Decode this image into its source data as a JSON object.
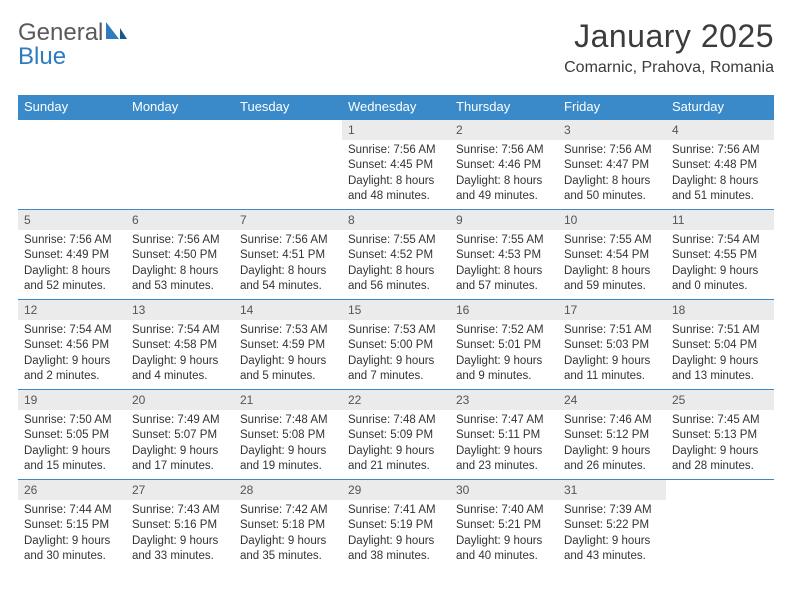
{
  "brand": {
    "word1": "General",
    "word2": "Blue"
  },
  "title": "January 2025",
  "location": "Comarnic, Prahova, Romania",
  "colors": {
    "header_bg": "#3a8ac9",
    "header_fg": "#ffffff",
    "row_divider": "#3a8ac9",
    "daynum_bg": "#ebebeb",
    "text": "#333333",
    "brand_gray": "#5a5a5a",
    "brand_blue": "#2f7bbf",
    "page_bg": "#ffffff"
  },
  "typography": {
    "title_fontsize": 32,
    "location_fontsize": 16,
    "dayheader_fontsize": 13,
    "daynum_fontsize": 12,
    "body_fontsize": 11.5,
    "font_family": "Arial"
  },
  "day_headers": [
    "Sunday",
    "Monday",
    "Tuesday",
    "Wednesday",
    "Thursday",
    "Friday",
    "Saturday"
  ],
  "weeks": [
    [
      null,
      null,
      null,
      {
        "n": "1",
        "sunrise": "Sunrise: 7:56 AM",
        "sunset": "Sunset: 4:45 PM",
        "dl1": "Daylight: 8 hours",
        "dl2": "and 48 minutes."
      },
      {
        "n": "2",
        "sunrise": "Sunrise: 7:56 AM",
        "sunset": "Sunset: 4:46 PM",
        "dl1": "Daylight: 8 hours",
        "dl2": "and 49 minutes."
      },
      {
        "n": "3",
        "sunrise": "Sunrise: 7:56 AM",
        "sunset": "Sunset: 4:47 PM",
        "dl1": "Daylight: 8 hours",
        "dl2": "and 50 minutes."
      },
      {
        "n": "4",
        "sunrise": "Sunrise: 7:56 AM",
        "sunset": "Sunset: 4:48 PM",
        "dl1": "Daylight: 8 hours",
        "dl2": "and 51 minutes."
      }
    ],
    [
      {
        "n": "5",
        "sunrise": "Sunrise: 7:56 AM",
        "sunset": "Sunset: 4:49 PM",
        "dl1": "Daylight: 8 hours",
        "dl2": "and 52 minutes."
      },
      {
        "n": "6",
        "sunrise": "Sunrise: 7:56 AM",
        "sunset": "Sunset: 4:50 PM",
        "dl1": "Daylight: 8 hours",
        "dl2": "and 53 minutes."
      },
      {
        "n": "7",
        "sunrise": "Sunrise: 7:56 AM",
        "sunset": "Sunset: 4:51 PM",
        "dl1": "Daylight: 8 hours",
        "dl2": "and 54 minutes."
      },
      {
        "n": "8",
        "sunrise": "Sunrise: 7:55 AM",
        "sunset": "Sunset: 4:52 PM",
        "dl1": "Daylight: 8 hours",
        "dl2": "and 56 minutes."
      },
      {
        "n": "9",
        "sunrise": "Sunrise: 7:55 AM",
        "sunset": "Sunset: 4:53 PM",
        "dl1": "Daylight: 8 hours",
        "dl2": "and 57 minutes."
      },
      {
        "n": "10",
        "sunrise": "Sunrise: 7:55 AM",
        "sunset": "Sunset: 4:54 PM",
        "dl1": "Daylight: 8 hours",
        "dl2": "and 59 minutes."
      },
      {
        "n": "11",
        "sunrise": "Sunrise: 7:54 AM",
        "sunset": "Sunset: 4:55 PM",
        "dl1": "Daylight: 9 hours",
        "dl2": "and 0 minutes."
      }
    ],
    [
      {
        "n": "12",
        "sunrise": "Sunrise: 7:54 AM",
        "sunset": "Sunset: 4:56 PM",
        "dl1": "Daylight: 9 hours",
        "dl2": "and 2 minutes."
      },
      {
        "n": "13",
        "sunrise": "Sunrise: 7:54 AM",
        "sunset": "Sunset: 4:58 PM",
        "dl1": "Daylight: 9 hours",
        "dl2": "and 4 minutes."
      },
      {
        "n": "14",
        "sunrise": "Sunrise: 7:53 AM",
        "sunset": "Sunset: 4:59 PM",
        "dl1": "Daylight: 9 hours",
        "dl2": "and 5 minutes."
      },
      {
        "n": "15",
        "sunrise": "Sunrise: 7:53 AM",
        "sunset": "Sunset: 5:00 PM",
        "dl1": "Daylight: 9 hours",
        "dl2": "and 7 minutes."
      },
      {
        "n": "16",
        "sunrise": "Sunrise: 7:52 AM",
        "sunset": "Sunset: 5:01 PM",
        "dl1": "Daylight: 9 hours",
        "dl2": "and 9 minutes."
      },
      {
        "n": "17",
        "sunrise": "Sunrise: 7:51 AM",
        "sunset": "Sunset: 5:03 PM",
        "dl1": "Daylight: 9 hours",
        "dl2": "and 11 minutes."
      },
      {
        "n": "18",
        "sunrise": "Sunrise: 7:51 AM",
        "sunset": "Sunset: 5:04 PM",
        "dl1": "Daylight: 9 hours",
        "dl2": "and 13 minutes."
      }
    ],
    [
      {
        "n": "19",
        "sunrise": "Sunrise: 7:50 AM",
        "sunset": "Sunset: 5:05 PM",
        "dl1": "Daylight: 9 hours",
        "dl2": "and 15 minutes."
      },
      {
        "n": "20",
        "sunrise": "Sunrise: 7:49 AM",
        "sunset": "Sunset: 5:07 PM",
        "dl1": "Daylight: 9 hours",
        "dl2": "and 17 minutes."
      },
      {
        "n": "21",
        "sunrise": "Sunrise: 7:48 AM",
        "sunset": "Sunset: 5:08 PM",
        "dl1": "Daylight: 9 hours",
        "dl2": "and 19 minutes."
      },
      {
        "n": "22",
        "sunrise": "Sunrise: 7:48 AM",
        "sunset": "Sunset: 5:09 PM",
        "dl1": "Daylight: 9 hours",
        "dl2": "and 21 minutes."
      },
      {
        "n": "23",
        "sunrise": "Sunrise: 7:47 AM",
        "sunset": "Sunset: 5:11 PM",
        "dl1": "Daylight: 9 hours",
        "dl2": "and 23 minutes."
      },
      {
        "n": "24",
        "sunrise": "Sunrise: 7:46 AM",
        "sunset": "Sunset: 5:12 PM",
        "dl1": "Daylight: 9 hours",
        "dl2": "and 26 minutes."
      },
      {
        "n": "25",
        "sunrise": "Sunrise: 7:45 AM",
        "sunset": "Sunset: 5:13 PM",
        "dl1": "Daylight: 9 hours",
        "dl2": "and 28 minutes."
      }
    ],
    [
      {
        "n": "26",
        "sunrise": "Sunrise: 7:44 AM",
        "sunset": "Sunset: 5:15 PM",
        "dl1": "Daylight: 9 hours",
        "dl2": "and 30 minutes."
      },
      {
        "n": "27",
        "sunrise": "Sunrise: 7:43 AM",
        "sunset": "Sunset: 5:16 PM",
        "dl1": "Daylight: 9 hours",
        "dl2": "and 33 minutes."
      },
      {
        "n": "28",
        "sunrise": "Sunrise: 7:42 AM",
        "sunset": "Sunset: 5:18 PM",
        "dl1": "Daylight: 9 hours",
        "dl2": "and 35 minutes."
      },
      {
        "n": "29",
        "sunrise": "Sunrise: 7:41 AM",
        "sunset": "Sunset: 5:19 PM",
        "dl1": "Daylight: 9 hours",
        "dl2": "and 38 minutes."
      },
      {
        "n": "30",
        "sunrise": "Sunrise: 7:40 AM",
        "sunset": "Sunset: 5:21 PM",
        "dl1": "Daylight: 9 hours",
        "dl2": "and 40 minutes."
      },
      {
        "n": "31",
        "sunrise": "Sunrise: 7:39 AM",
        "sunset": "Sunset: 5:22 PM",
        "dl1": "Daylight: 9 hours",
        "dl2": "and 43 minutes."
      },
      null
    ]
  ]
}
